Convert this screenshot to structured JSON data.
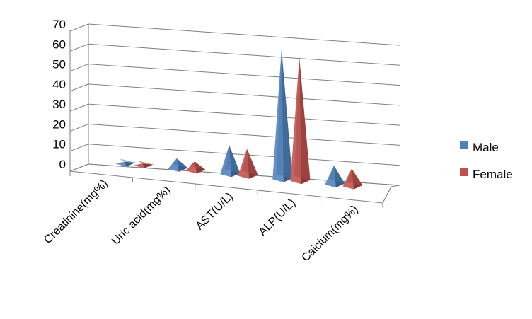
{
  "chart_data": {
    "type": "bar",
    "style": "3d-pyramid",
    "categories": [
      "Creatinine(mg%)",
      "Uric acid(mg%)",
      "AST(U/L)",
      "ALP(U/L)",
      "Caicium(mg%)"
    ],
    "series": [
      {
        "name": "Male",
        "values": [
          0.9,
          5.2,
          14.5,
          65.0,
          9.5
        ],
        "color": "#4F81BD"
      },
      {
        "name": "Female",
        "values": [
          0.9,
          4.6,
          13.5,
          62.0,
          8.8
        ],
        "color": "#C0504D"
      }
    ],
    "yticks": [
      0,
      10,
      20,
      30,
      40,
      50,
      60,
      70
    ],
    "ylim": [
      0,
      70
    ],
    "grid": true,
    "legend": "right"
  }
}
